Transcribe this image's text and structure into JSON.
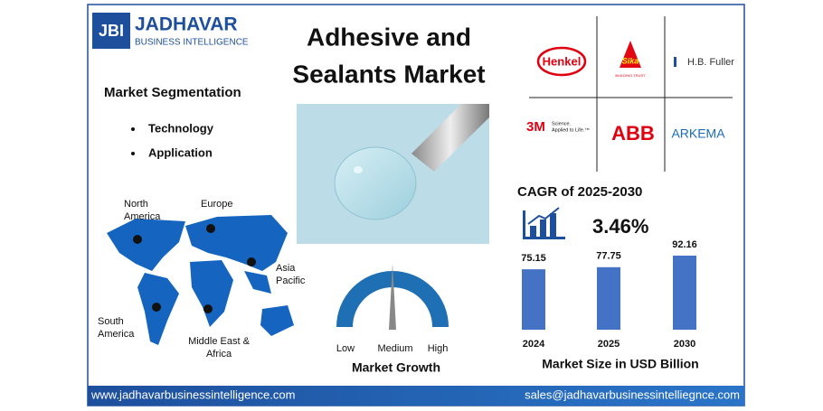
{
  "logo": {
    "mark": "JBI",
    "name": "JADHAVAR",
    "tagline": "BUSINESS INTELLIGENCE"
  },
  "title": [
    "Adhesive and",
    "Sealants Market"
  ],
  "segmentation": {
    "heading": "Market Segmentation",
    "items": [
      "Technology",
      "Application"
    ]
  },
  "regions": [
    [
      "North",
      "America"
    ],
    [
      "Europe"
    ],
    [
      "Asia",
      "Pacific"
    ],
    [
      "South",
      "America"
    ],
    [
      "Middle East &",
      "Africa"
    ]
  ],
  "companies": {
    "henkel": "Henkel",
    "sika": "Sika",
    "sika_tagline": "BUILDING TRUST",
    "hbfuller": "H.B. Fuller",
    "threem": "3M",
    "threem_tagline": [
      "Science.",
      "Applied to Life.™"
    ],
    "abb": "ABB",
    "arkema": "ARKEMA"
  },
  "cagr": {
    "label": "CAGR of 2025-2030",
    "value": "3.46%"
  },
  "gauge": {
    "labels": [
      "Low",
      "Medium",
      "High"
    ],
    "caption": "Market Growth"
  },
  "market_size": {
    "categories": [
      "2024",
      "2025",
      "2030"
    ],
    "values": [
      75.15,
      77.75,
      92.16
    ],
    "caption": "Market Size in USD Billion",
    "color": "#4472c4"
  },
  "footer": {
    "website": "www.jadhavarbusinessintelligence.com",
    "email": "sales@jadhavarbusinessintelliegnce.com"
  }
}
